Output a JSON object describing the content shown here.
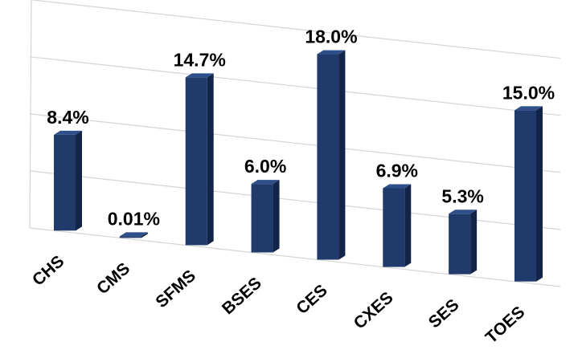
{
  "chart_data": {
    "type": "bar",
    "categories": [
      "CHS",
      "CMS",
      "SFMS",
      "BSES",
      "CES",
      "CXES",
      "SES",
      "TOES"
    ],
    "values": [
      8.4,
      0.01,
      14.7,
      6.0,
      18.0,
      6.9,
      5.3,
      15.0
    ],
    "value_labels": [
      "8.4%",
      "0.01%",
      "14.7%",
      "6.0%",
      "18.0%",
      "6.9%",
      "5.3%",
      "15.0%"
    ],
    "unit": "%",
    "ylim": [
      0,
      20
    ],
    "grid": true,
    "legend": "none",
    "style": "3d-perspective",
    "colors": {
      "bar_front": "#1f3a6b",
      "bar_side": "#122548",
      "bar_top": "#2f4f8a",
      "grid": "#d4d4d4"
    }
  }
}
